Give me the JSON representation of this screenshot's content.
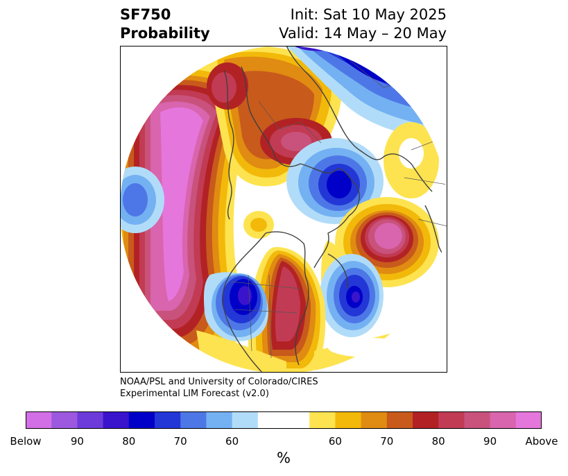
{
  "header": {
    "variable": "SF750",
    "product": "Probability",
    "init": "Init: Sat 10 May 2025",
    "valid": "Valid: 14 May – 20 May"
  },
  "credit": {
    "line1": "NOAA/PSL and University of Colorado/CIRES",
    "line2": "Experimental LIM Forecast (v2.0)"
  },
  "colorbar": {
    "unit": "%",
    "colors": [
      "#d36fe6",
      "#9c59e0",
      "#6d3bd9",
      "#3a14cc",
      "#0000c8",
      "#2336d6",
      "#4d77e6",
      "#74b1f2",
      "#b1dcf9",
      "#ffffff",
      "#ffffff",
      "#fde34f",
      "#f2b90a",
      "#e08b12",
      "#c85a1c",
      "#b22225",
      "#c13b54",
      "#c9527c",
      "#d865ad",
      "#e576dc"
    ],
    "tick_labels": [
      "Below",
      "90",
      "80",
      "70",
      "60",
      "60",
      "70",
      "80",
      "90",
      "Above"
    ]
  }
}
